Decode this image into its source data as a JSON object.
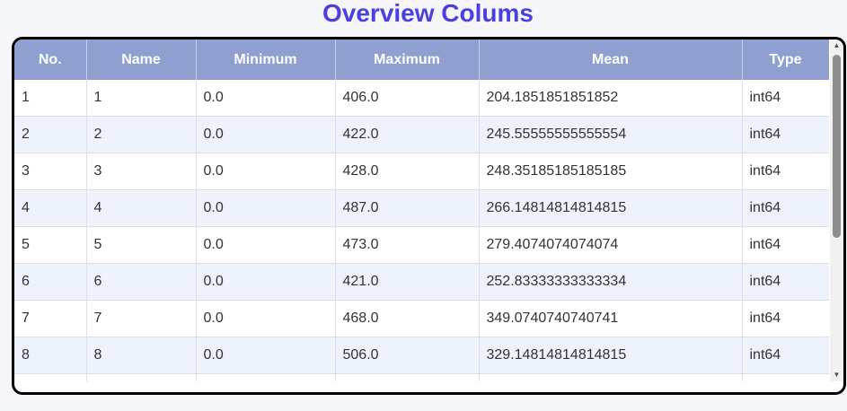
{
  "title": "Overview Colums",
  "table": {
    "headers": [
      "No.",
      "Name",
      "Minimum",
      "Maximum",
      "Mean",
      "Type"
    ],
    "rows": [
      [
        "1",
        "1",
        "0.0",
        "406.0",
        "204.1851851851852",
        "int64"
      ],
      [
        "2",
        "2",
        "0.0",
        "422.0",
        "245.55555555555554",
        "int64"
      ],
      [
        "3",
        "3",
        "0.0",
        "428.0",
        "248.35185185185185",
        "int64"
      ],
      [
        "4",
        "4",
        "0.0",
        "487.0",
        "266.14814814814815",
        "int64"
      ],
      [
        "5",
        "5",
        "0.0",
        "473.0",
        "279.4074074074074",
        "int64"
      ],
      [
        "6",
        "6",
        "0.0",
        "421.0",
        "252.83333333333334",
        "int64"
      ],
      [
        "7",
        "7",
        "0.0",
        "468.0",
        "349.0740740740741",
        "int64"
      ],
      [
        "8",
        "8",
        "0.0",
        "506.0",
        "329.14814814814815",
        "int64"
      ]
    ]
  },
  "scrollbar": {
    "up_icon": "chevron-up-icon",
    "down_icon": "chevron-down-icon"
  }
}
